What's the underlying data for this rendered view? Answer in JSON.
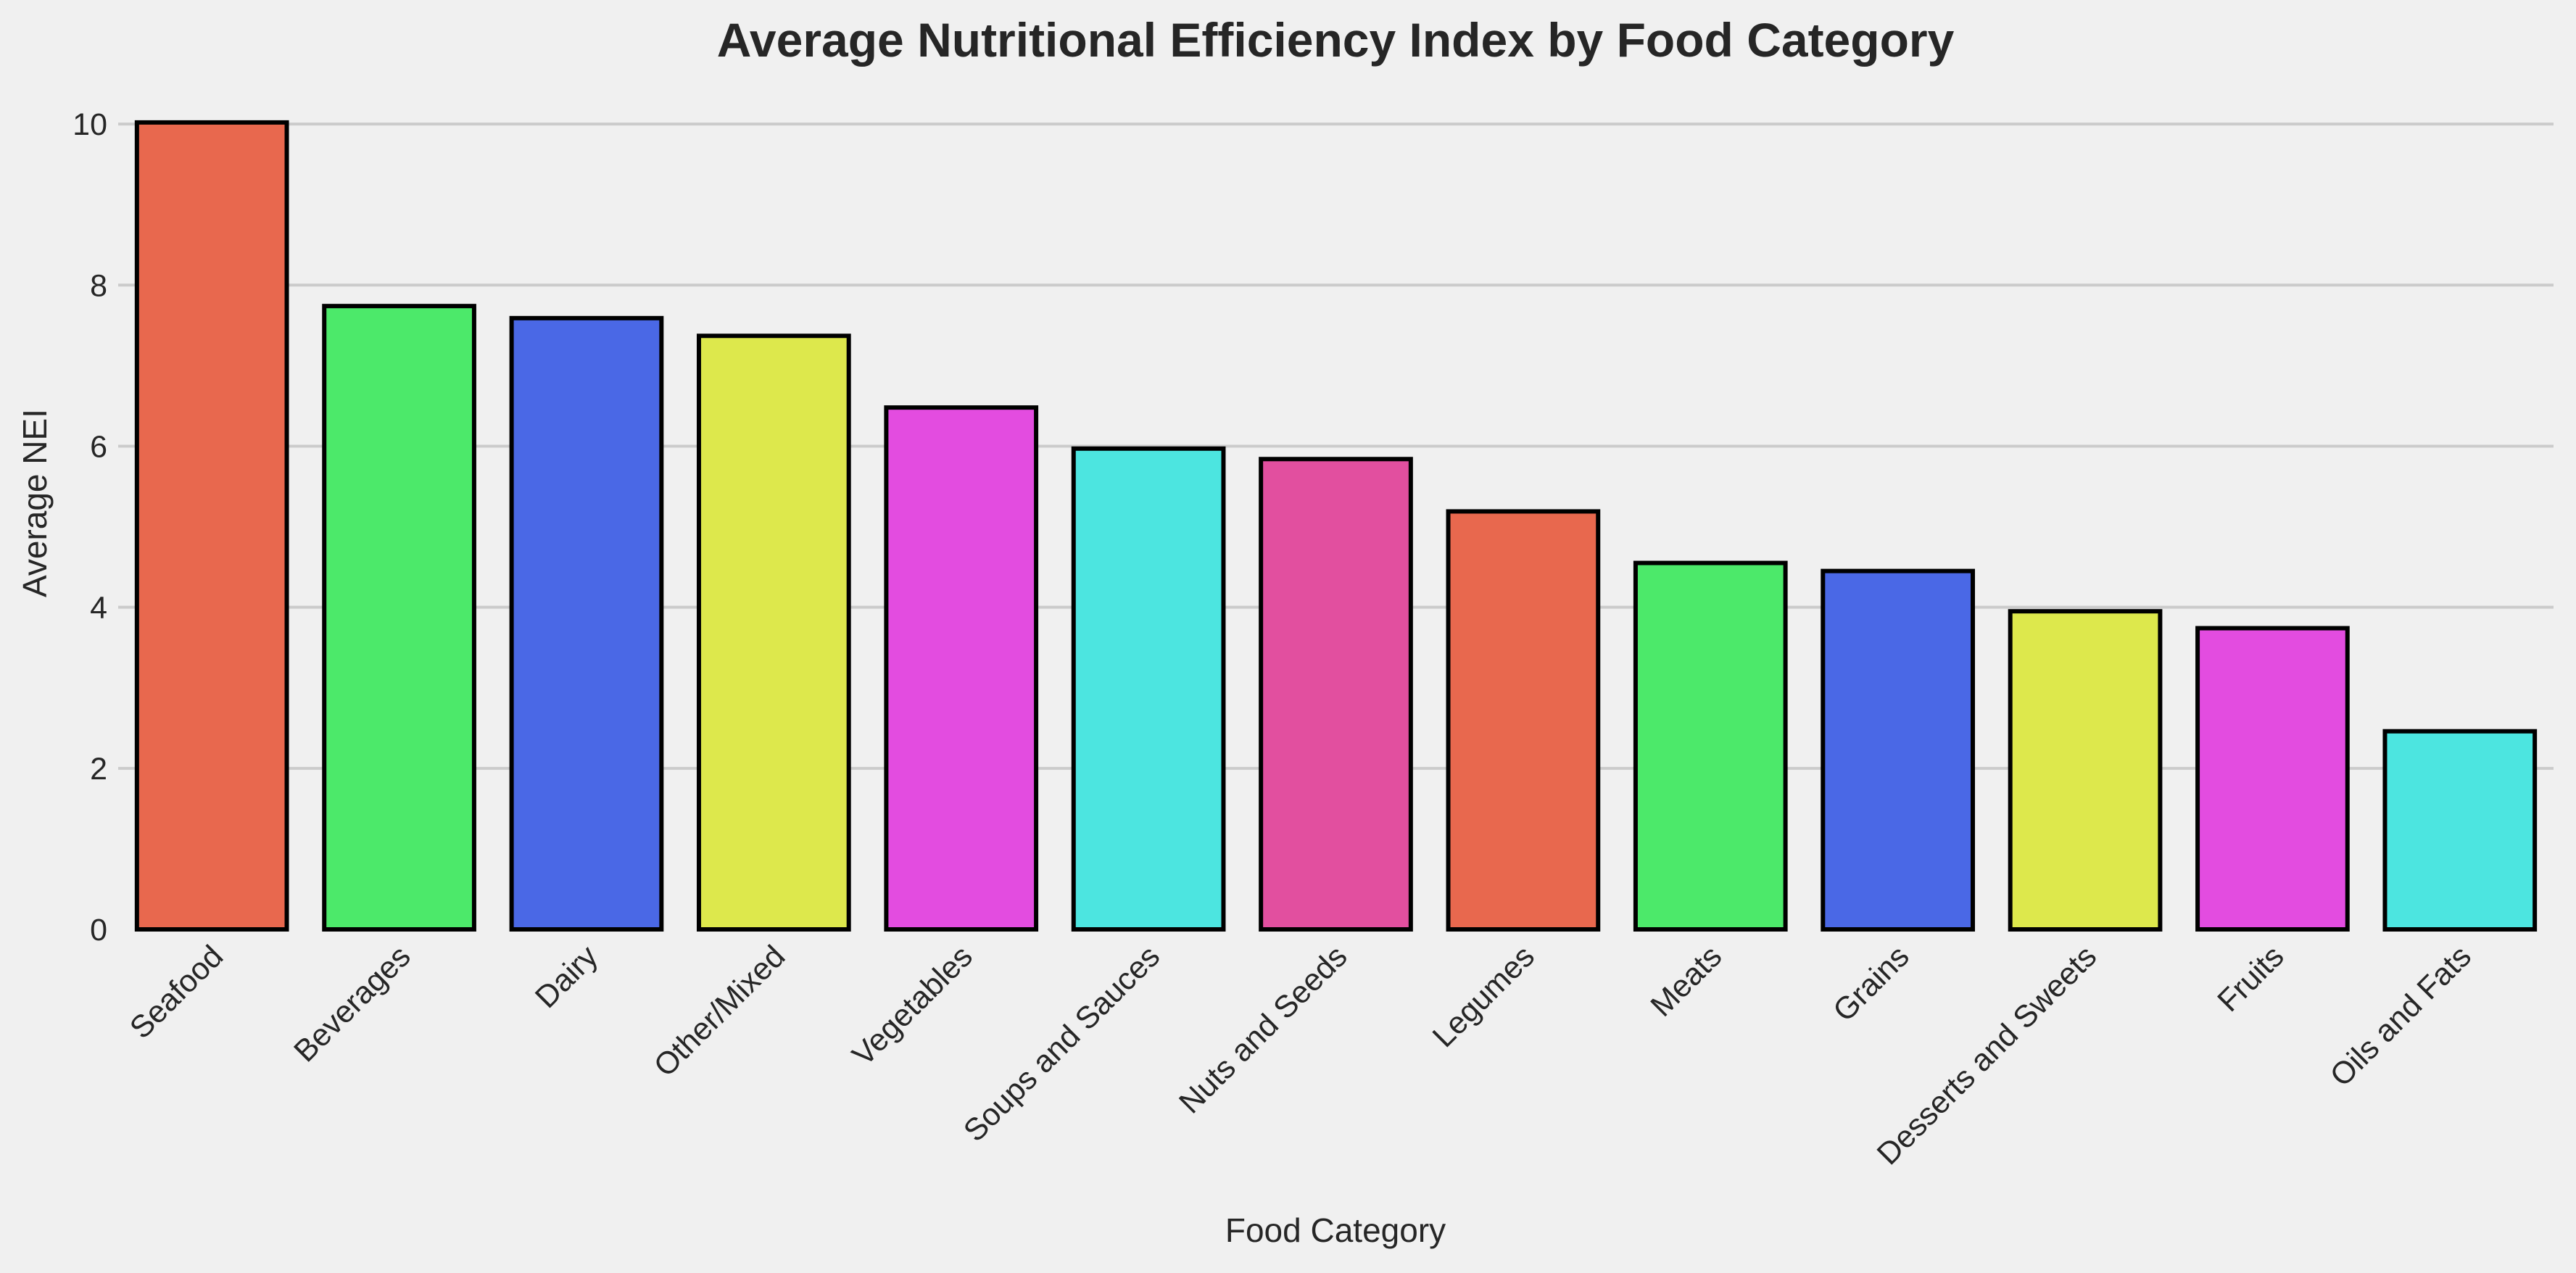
{
  "chart_data": {
    "type": "bar",
    "title": "Average Nutritional Efficiency Index by Food Category",
    "xlabel": "Food Category",
    "ylabel": "Average NEI",
    "ylim": [
      0,
      10.1
    ],
    "yticks": [
      0,
      2,
      4,
      6,
      8,
      10
    ],
    "grid": "y",
    "categories": [
      "Seafood",
      "Beverages",
      "Dairy",
      "Other/Mixed",
      "Vegetables",
      "Soups and Sauces",
      "Nuts and Seeds",
      "Legumes",
      "Meats",
      "Grains",
      "Desserts and Sweets",
      "Fruits",
      "Oils and Fats"
    ],
    "values": [
      10.02,
      7.74,
      7.59,
      7.37,
      6.48,
      5.97,
      5.84,
      5.19,
      4.55,
      4.45,
      3.95,
      3.74,
      2.46
    ],
    "colors": [
      "#e8684e",
      "#4ce96a",
      "#4a68e6",
      "#dde84c",
      "#e34ce0",
      "#4ce5e0",
      "#e24f9f",
      "#e8684e",
      "#4ce96a",
      "#4a68e6",
      "#dde84c",
      "#e34ce0",
      "#4ce5e0"
    ]
  }
}
